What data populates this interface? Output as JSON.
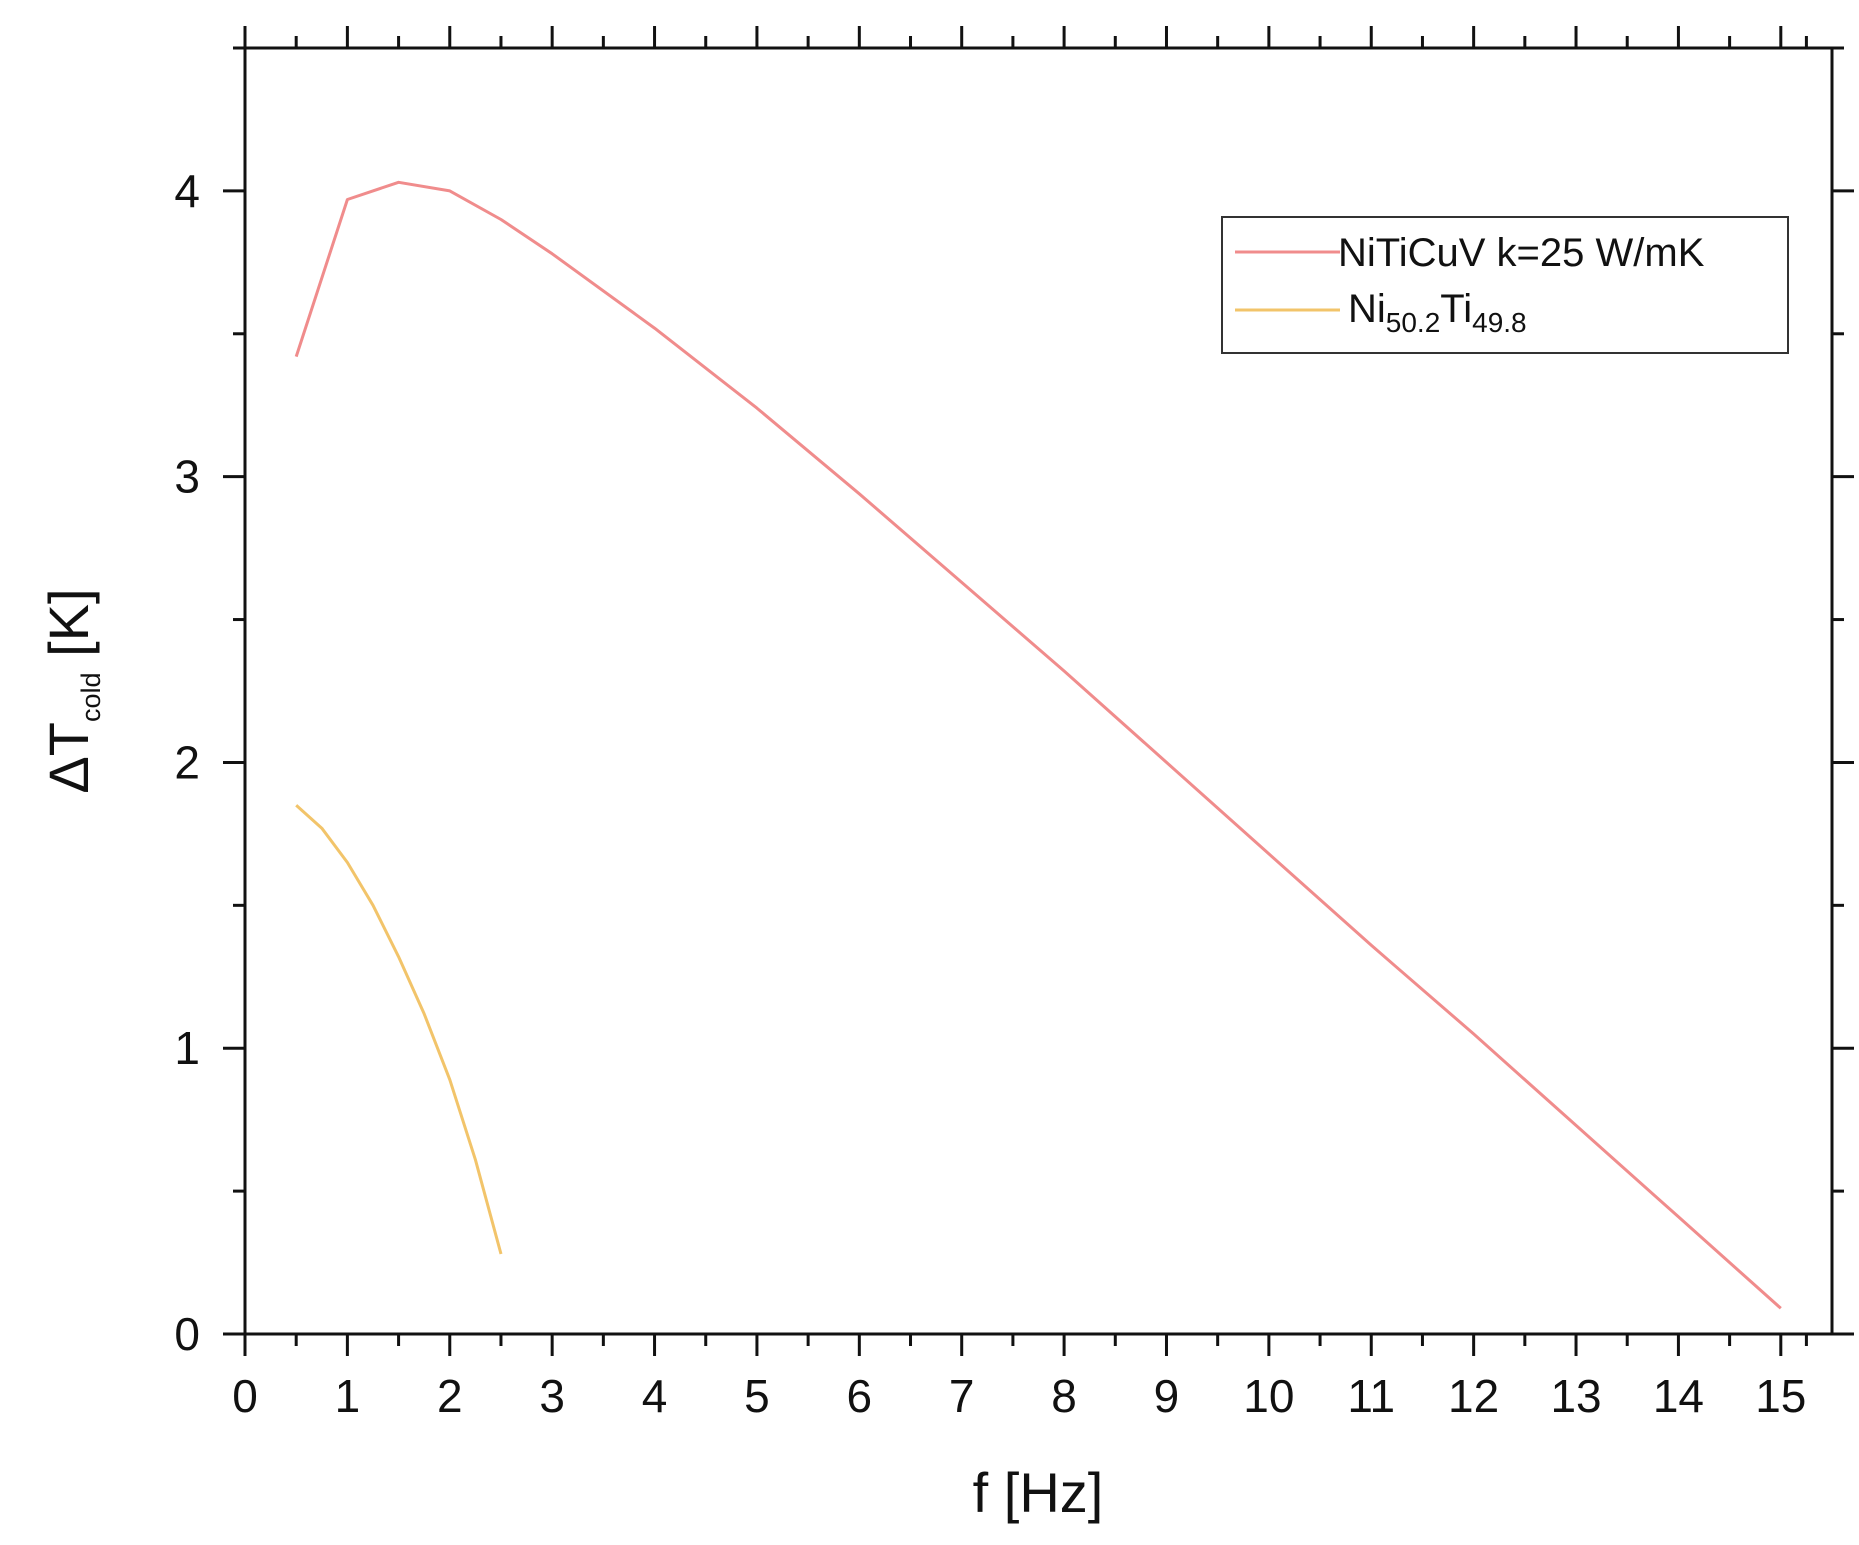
{
  "chart_data": {
    "type": "line",
    "xlabel": "f [Hz]",
    "ylabel": {
      "prefix": "ΔT",
      "sub": "cold",
      "suffix": " [K]"
    },
    "xlim": [
      0,
      15.5
    ],
    "ylim": [
      0,
      4.5
    ],
    "xticks": [
      0,
      1,
      2,
      3,
      4,
      5,
      6,
      7,
      8,
      9,
      10,
      11,
      12,
      13,
      14,
      15
    ],
    "yticks": [
      0,
      1,
      2,
      3,
      4
    ],
    "grid": false,
    "legend_position": "top-right",
    "series": [
      {
        "name": "NiTiCuV k=25 W/mK",
        "color": "#f08c8c",
        "x": [
          0.5,
          1.0,
          1.5,
          2.0,
          2.5,
          3.0,
          4.0,
          5.0,
          6.0,
          7.0,
          8.0,
          9.0,
          10.0,
          11.0,
          12.0,
          13.0,
          14.0,
          15.0
        ],
        "y": [
          3.42,
          3.97,
          4.03,
          4.0,
          3.9,
          3.78,
          3.52,
          3.24,
          2.94,
          2.63,
          2.32,
          2.0,
          1.68,
          1.36,
          1.05,
          0.73,
          0.41,
          0.09
        ]
      },
      {
        "name": "Ni50.2Ti49.8",
        "name_parts": [
          {
            "text": "Ni",
            "sub": false
          },
          {
            "text": "50.2",
            "sub": true
          },
          {
            "text": "Ti",
            "sub": false
          },
          {
            "text": "49.8",
            "sub": true
          }
        ],
        "color": "#f2c46a",
        "x": [
          0.5,
          0.75,
          1.0,
          1.25,
          1.5,
          1.75,
          2.0,
          2.25,
          2.5
        ],
        "y": [
          1.85,
          1.77,
          1.65,
          1.5,
          1.32,
          1.12,
          0.89,
          0.61,
          0.28
        ]
      }
    ]
  }
}
